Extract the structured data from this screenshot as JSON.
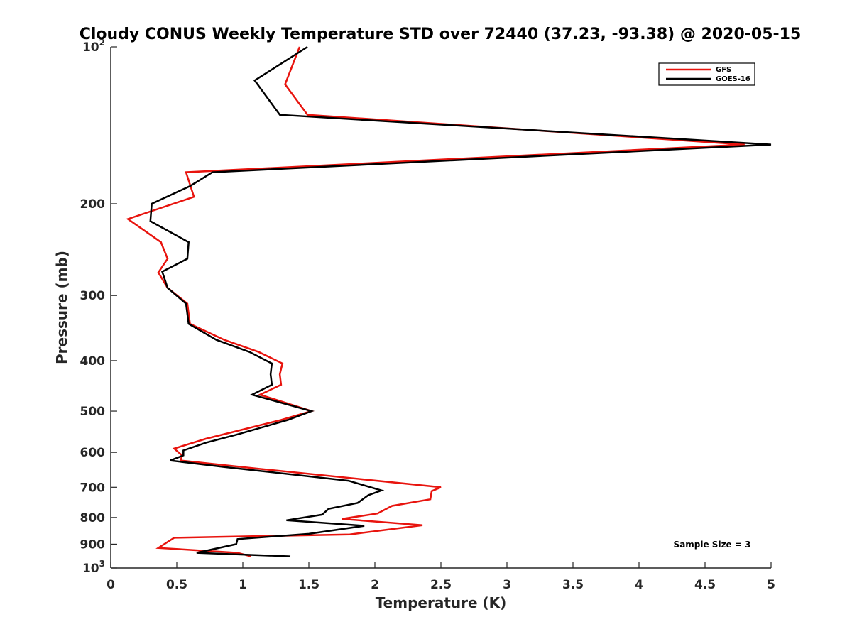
{
  "chart_data": {
    "type": "line",
    "title": "Cloudy CONUS Weekly Temperature STD over 72440 (37.23, -93.38) @ 2020-05-15",
    "xlabel": "Temperature (K)",
    "ylabel": "Pressure (mb)",
    "xlim": [
      0,
      5
    ],
    "ylim": [
      100,
      1000
    ],
    "y_scale": "log",
    "y_reversed": true,
    "x_ticks": [
      "0",
      "0.5",
      "1",
      "1.5",
      "2",
      "2.5",
      "3",
      "3.5",
      "4",
      "4.5",
      "5"
    ],
    "y_ticks": [
      {
        "value": 100,
        "base": "10",
        "exp": "2"
      },
      {
        "value": 200,
        "label": "200"
      },
      {
        "value": 300,
        "label": "300"
      },
      {
        "value": 400,
        "label": "400"
      },
      {
        "value": 500,
        "label": "500"
      },
      {
        "value": 600,
        "label": "600"
      },
      {
        "value": 700,
        "label": "700"
      },
      {
        "value": 800,
        "label": "800"
      },
      {
        "value": 900,
        "label": "900"
      },
      {
        "value": 1000,
        "base": "10",
        "exp": "3"
      }
    ],
    "grid": false,
    "legend_position": "top-right",
    "annotation": "Sample Size = 3",
    "series": [
      {
        "name": "GFS",
        "color": "#e8140e",
        "points": [
          [
            1.43,
            100
          ],
          [
            1.32,
            118
          ],
          [
            1.49,
            135
          ],
          [
            4.8,
            154
          ],
          [
            0.57,
            174
          ],
          [
            0.63,
            194
          ],
          [
            0.13,
            214
          ],
          [
            0.38,
            237
          ],
          [
            0.43,
            255
          ],
          [
            0.36,
            271
          ],
          [
            0.43,
            290
          ],
          [
            0.58,
            311
          ],
          [
            0.6,
            340
          ],
          [
            0.86,
            365
          ],
          [
            1.12,
            385
          ],
          [
            1.3,
            405
          ],
          [
            1.28,
            425
          ],
          [
            1.29,
            445
          ],
          [
            1.13,
            465
          ],
          [
            1.52,
            500
          ],
          [
            1.29,
            520
          ],
          [
            0.72,
            565
          ],
          [
            0.48,
            590
          ],
          [
            0.54,
            608
          ],
          [
            0.53,
            622
          ],
          [
            1.12,
            645
          ],
          [
            2.5,
            700
          ],
          [
            2.43,
            712
          ],
          [
            2.42,
            738
          ],
          [
            2.13,
            760
          ],
          [
            2.02,
            786
          ],
          [
            1.75,
            805
          ],
          [
            2.36,
            828
          ],
          [
            1.81,
            862
          ],
          [
            0.48,
            875
          ],
          [
            0.36,
            915
          ],
          [
            0.96,
            935
          ],
          [
            1.06,
            950
          ]
        ]
      },
      {
        "name": "GOES-16",
        "color": "#000000",
        "points": [
          [
            1.49,
            100
          ],
          [
            1.09,
            116
          ],
          [
            1.28,
            135
          ],
          [
            5.0,
            154
          ],
          [
            0.77,
            174
          ],
          [
            0.6,
            185
          ],
          [
            0.31,
            200
          ],
          [
            0.3,
            216
          ],
          [
            0.59,
            237
          ],
          [
            0.58,
            255
          ],
          [
            0.39,
            270
          ],
          [
            0.43,
            290
          ],
          [
            0.57,
            311
          ],
          [
            0.59,
            340
          ],
          [
            0.8,
            365
          ],
          [
            1.05,
            385
          ],
          [
            1.22,
            405
          ],
          [
            1.21,
            425
          ],
          [
            1.22,
            445
          ],
          [
            1.07,
            465
          ],
          [
            1.52,
            500
          ],
          [
            1.34,
            520
          ],
          [
            0.95,
            555
          ],
          [
            0.72,
            575
          ],
          [
            0.55,
            595
          ],
          [
            0.55,
            608
          ],
          [
            0.45,
            622
          ],
          [
            0.86,
            640
          ],
          [
            1.8,
            680
          ],
          [
            2.05,
            710
          ],
          [
            1.95,
            725
          ],
          [
            1.87,
            750
          ],
          [
            1.65,
            770
          ],
          [
            1.6,
            790
          ],
          [
            1.33,
            810
          ],
          [
            1.92,
            830
          ],
          [
            1.5,
            860
          ],
          [
            0.96,
            880
          ],
          [
            0.95,
            900
          ],
          [
            0.65,
            935
          ],
          [
            1.36,
            950
          ]
        ]
      }
    ]
  }
}
